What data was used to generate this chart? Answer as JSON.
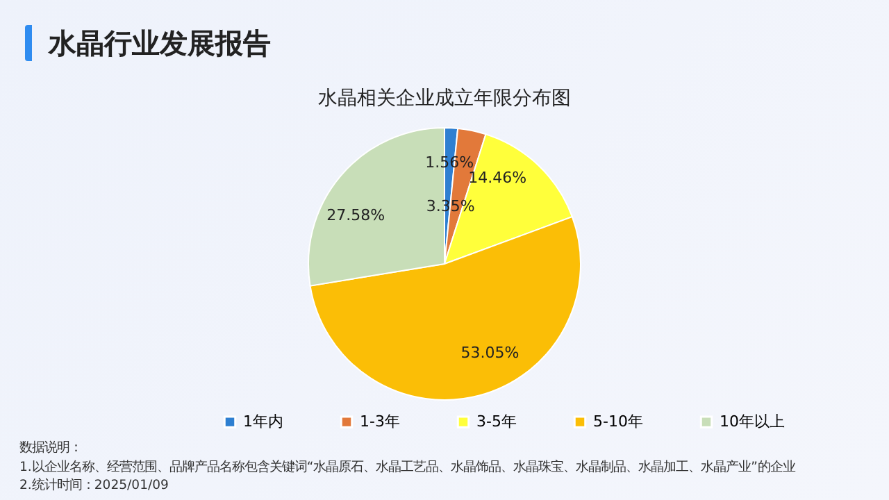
{
  "chart_data": {
    "type": "pie",
    "title": "水晶行业发展报告",
    "subtitle": "水晶相关企业成立年限分布图",
    "categories": [
      "1年内",
      "1-3年",
      "3-5年",
      "5-10年",
      "10年以上"
    ],
    "values": [
      1.56,
      3.35,
      14.46,
      53.05,
      27.58
    ],
    "colors": [
      "#2e7fd1",
      "#e2793a",
      "#ffff3b",
      "#fbbe06",
      "#c8deb8"
    ],
    "value_labels": [
      "1.56%",
      "3.35%",
      "14.46%",
      "53.05%",
      "27.58%"
    ],
    "legend": "bottom",
    "annotations": [
      "数据说明：",
      "1.以企业名称、经营范围、品牌产品名称包含关键词“水晶原石、水晶工艺品、水晶饰品、水晶珠宝、水晶制品、水晶加工、水晶产业”的企业",
      "2.统计时间：2025/01/09"
    ]
  }
}
